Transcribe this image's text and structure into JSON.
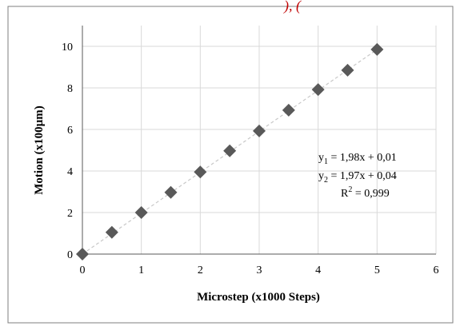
{
  "chart_data": {
    "type": "scatter",
    "xlabel": "Microstep (x1000 Steps)",
    "ylabel": "Motion (x100µm)",
    "xlim": [
      0,
      6
    ],
    "ylim": [
      0,
      11
    ],
    "x_ticks": [
      "0",
      "1",
      "2",
      "3",
      "4",
      "5",
      "6"
    ],
    "y_ticks": [
      "0",
      "2",
      "4",
      "6",
      "8",
      "10"
    ],
    "grid": true,
    "series": [
      {
        "x": [
          0,
          0.5,
          1,
          1.5,
          2,
          2.5,
          3,
          3.5,
          4,
          4.5,
          5
        ],
        "y": [
          0,
          1.05,
          2.0,
          2.97,
          3.95,
          4.97,
          5.93,
          6.93,
          7.92,
          8.85,
          9.85
        ],
        "marker": "diamond",
        "color": "#595959"
      }
    ],
    "trendline": {
      "style": "dashed",
      "color": "#c8c8c8",
      "from": [
        0,
        0
      ],
      "to": [
        5,
        9.85
      ]
    },
    "annotation": {
      "line1": {
        "lead": "y",
        "sub": "1",
        "rest": " = 1,98x + 0,01"
      },
      "line2": {
        "lead": "y",
        "sub": "2",
        "rest": " = 1,97x + 0,04"
      },
      "line3": {
        "lead": "R",
        "sup": "2",
        "rest": " = 0,999"
      }
    },
    "top_partial_text": "), ("
  },
  "colors": {
    "top_partial_text": "#c00000",
    "frame": "#7f7f7f",
    "grid": "#d9d9d9",
    "marker": "#595959"
  }
}
